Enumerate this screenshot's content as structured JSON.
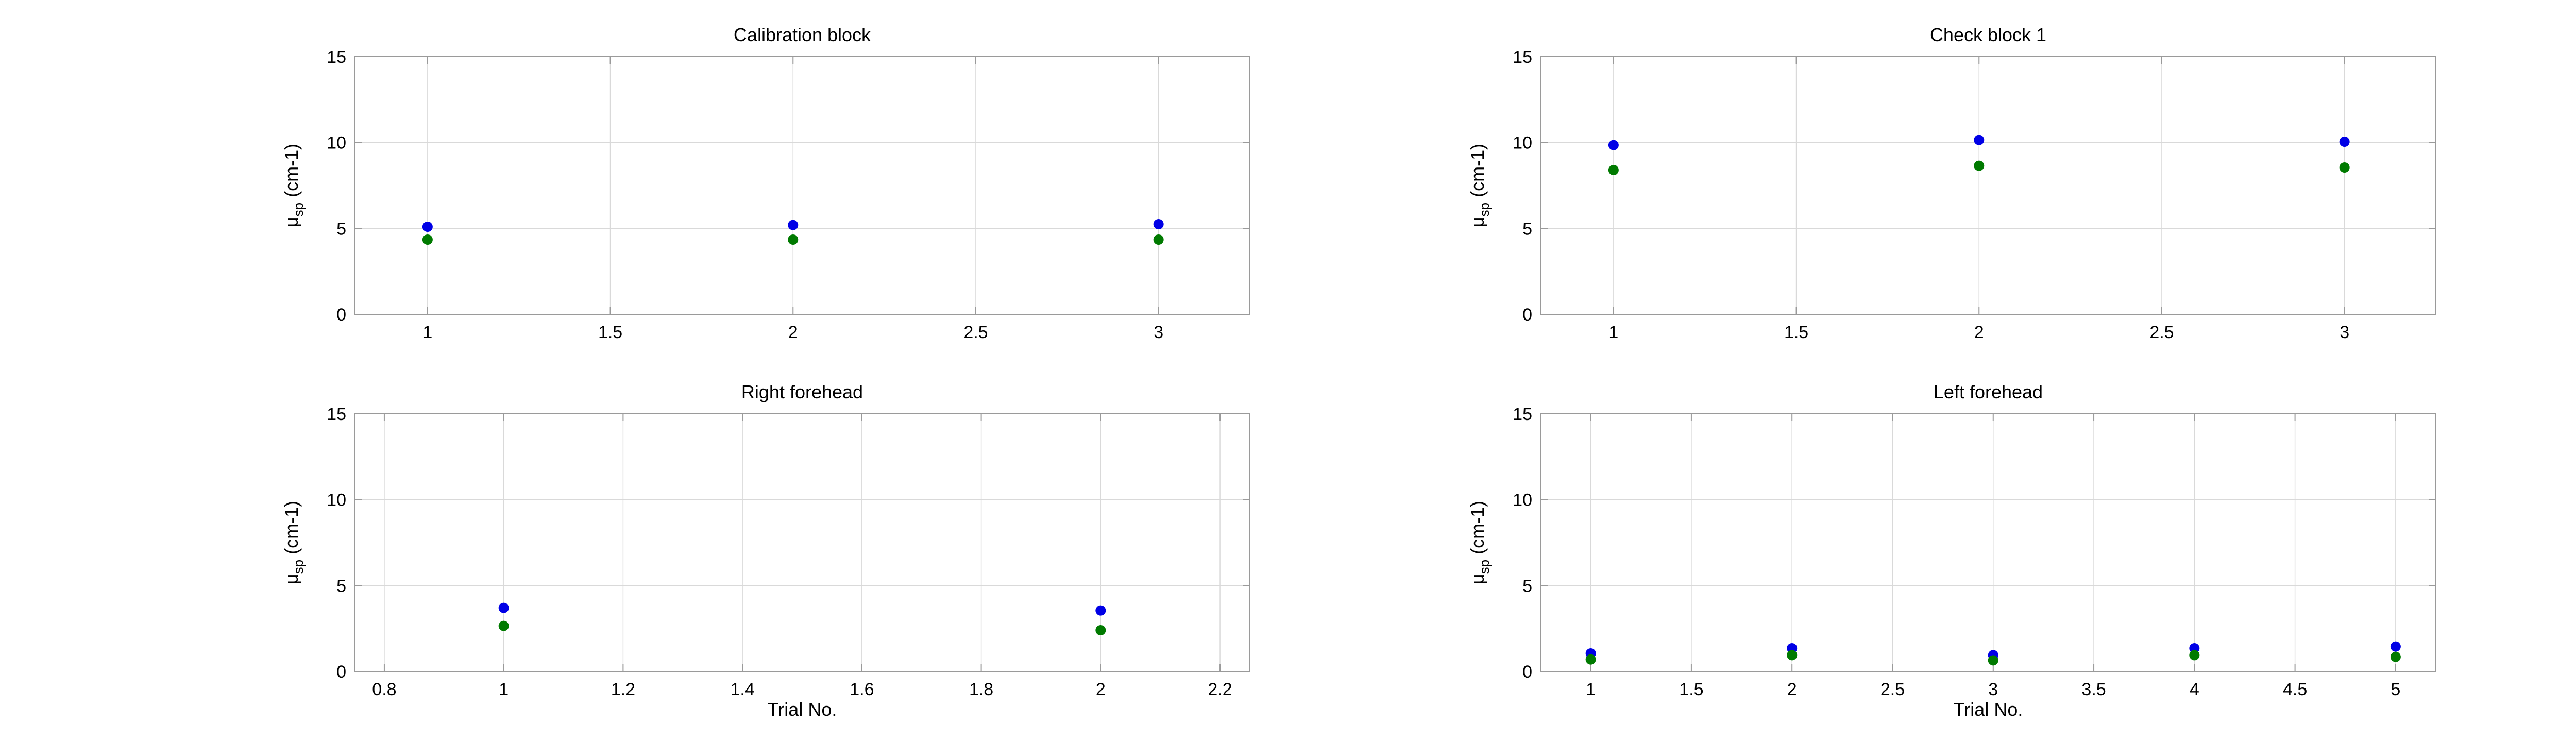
{
  "chart_data": [
    {
      "type": "scatter",
      "title": "Calibration block",
      "xlabel": "",
      "ylabel": {
        "symbol": "μ",
        "subscript": "sp",
        "suffix": " (cm-1)"
      },
      "xlim": [
        0.8,
        3.25
      ],
      "ylim": [
        0,
        15
      ],
      "xticks": [
        1,
        1.5,
        2,
        2.5,
        3
      ],
      "xtick_labels": [
        "1",
        "1.5",
        "2",
        "2.5",
        "3"
      ],
      "yticks": [
        0,
        5,
        10,
        15
      ],
      "ytick_labels": [
        "0",
        "5",
        "10",
        "15"
      ],
      "grid": true,
      "series": [
        {
          "color": "#0000e6",
          "x": [
            1,
            2,
            3
          ],
          "y": [
            5.1,
            5.2,
            5.25
          ]
        },
        {
          "color": "#007a00",
          "x": [
            1,
            2,
            3
          ],
          "y": [
            4.35,
            4.35,
            4.35
          ]
        }
      ]
    },
    {
      "type": "scatter",
      "title": "Check block 1",
      "xlabel": "",
      "ylabel": {
        "symbol": "μ",
        "subscript": "sp",
        "suffix": " (cm-1)"
      },
      "xlim": [
        0.8,
        3.25
      ],
      "ylim": [
        0,
        15
      ],
      "xticks": [
        1,
        1.5,
        2,
        2.5,
        3
      ],
      "xtick_labels": [
        "1",
        "1.5",
        "2",
        "2.5",
        "3"
      ],
      "yticks": [
        0,
        5,
        10,
        15
      ],
      "ytick_labels": [
        "0",
        "5",
        "10",
        "15"
      ],
      "grid": true,
      "series": [
        {
          "color": "#0000e6",
          "x": [
            1,
            2,
            3
          ],
          "y": [
            9.85,
            10.15,
            10.05
          ]
        },
        {
          "color": "#007a00",
          "x": [
            1,
            2,
            3
          ],
          "y": [
            8.4,
            8.65,
            8.55
          ]
        }
      ]
    },
    {
      "type": "scatter",
      "title": "Right forehead",
      "xlabel": "Trial No.",
      "ylabel": {
        "symbol": "μ",
        "subscript": "sp",
        "suffix": " (cm-1)"
      },
      "xlim": [
        0.75,
        2.25
      ],
      "ylim": [
        0,
        15
      ],
      "xticks": [
        0.8,
        1,
        1.2,
        1.4,
        1.6,
        1.8,
        2,
        2.2
      ],
      "xtick_labels": [
        "0.8",
        "1",
        "1.2",
        "1.4",
        "1.6",
        "1.8",
        "2",
        "2.2"
      ],
      "yticks": [
        0,
        5,
        10,
        15
      ],
      "ytick_labels": [
        "0",
        "5",
        "10",
        "15"
      ],
      "grid": true,
      "series": [
        {
          "color": "#0000e6",
          "x": [
            1,
            2
          ],
          "y": [
            3.7,
            3.55
          ]
        },
        {
          "color": "#007a00",
          "x": [
            1,
            2
          ],
          "y": [
            2.65,
            2.4
          ]
        }
      ]
    },
    {
      "type": "scatter",
      "title": "Left forehead",
      "xlabel": "Trial No.",
      "ylabel": {
        "symbol": "μ",
        "subscript": "sp",
        "suffix": " (cm-1)"
      },
      "xlim": [
        0.75,
        5.2
      ],
      "ylim": [
        0,
        15
      ],
      "xticks": [
        1,
        1.5,
        2,
        2.5,
        3,
        3.5,
        4,
        4.5,
        5
      ],
      "xtick_labels": [
        "1",
        "1.5",
        "2",
        "2.5",
        "3",
        "3.5",
        "4",
        "4.5",
        "5"
      ],
      "yticks": [
        0,
        5,
        10,
        15
      ],
      "ytick_labels": [
        "0",
        "5",
        "10",
        "15"
      ],
      "grid": true,
      "series": [
        {
          "color": "#0000e6",
          "x": [
            1,
            2,
            3,
            4,
            5
          ],
          "y": [
            1.05,
            1.35,
            0.95,
            1.35,
            1.45
          ]
        },
        {
          "color": "#007a00",
          "x": [
            1,
            2,
            3,
            4,
            5
          ],
          "y": [
            0.7,
            0.95,
            0.65,
            0.95,
            0.85
          ]
        }
      ]
    }
  ]
}
